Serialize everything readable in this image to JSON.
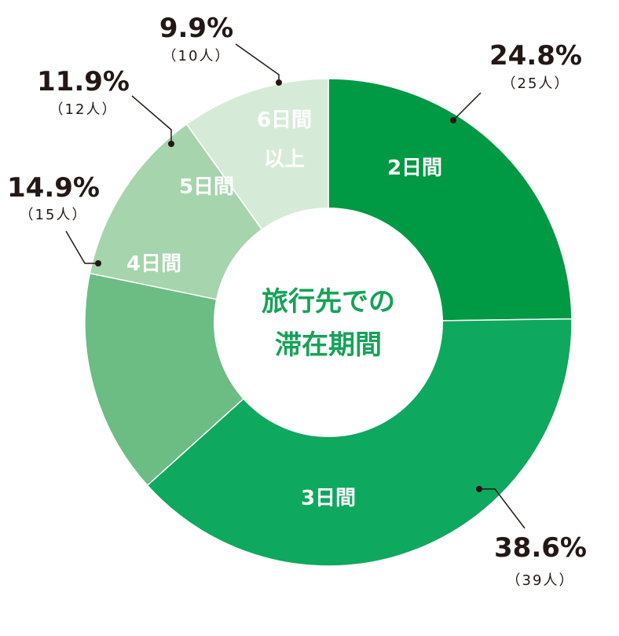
{
  "chart_data": {
    "type": "pie",
    "donut": true,
    "center_label": [
      "旅行先での",
      "滞在期間"
    ],
    "start": "top, clockwise",
    "slices": [
      {
        "label": "2日間",
        "percent": 24.8,
        "count_label": "（25人）",
        "count": 25,
        "color": "#009944"
      },
      {
        "label": "3日間",
        "percent": 38.6,
        "count_label": "（39人）",
        "count": 39,
        "color": "#0ea85e"
      },
      {
        "label": "4日間",
        "percent": 14.9,
        "count_label": "（15人）",
        "count": 15,
        "color": "#6cbd84"
      },
      {
        "label": "5日間",
        "percent": 11.9,
        "count_label": "（12人）",
        "count": 12,
        "color": "#a6d4ac"
      },
      {
        "label": "6日間以上",
        "label_lines": [
          "6日間",
          "以上"
        ],
        "percent": 9.9,
        "count_label": "（10人）",
        "count": 10,
        "color": "#d6ebd7"
      }
    ],
    "percent_labels": [
      "24.8%",
      "38.6%",
      "14.9%",
      "11.9%",
      "9.9%"
    ]
  }
}
